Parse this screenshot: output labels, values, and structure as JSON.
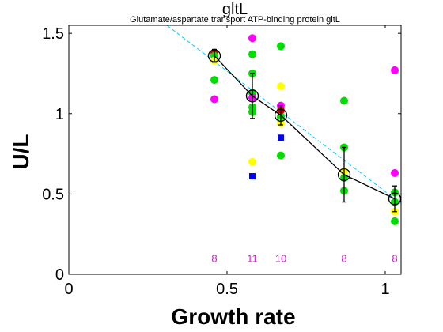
{
  "chart_data": {
    "type": "scatter",
    "title": "gltL",
    "subtitle": "Glutamate/aspartate transport ATP-binding protein gltL",
    "xlabel": "Growth rate",
    "ylabel": "U/L",
    "xlim": [
      0,
      1.05
    ],
    "ylim": [
      0,
      1.55
    ],
    "xticks": [
      0,
      0.5,
      1
    ],
    "xtick_labels": [
      "0",
      "0.5",
      "1"
    ],
    "yticks": [
      0,
      0.5,
      1,
      1.5
    ],
    "ytick_labels": [
      "0",
      "0.5",
      "1",
      "1.5"
    ],
    "grid": false,
    "colors": {
      "magenta": "#ff00ff",
      "green": "#00dd00",
      "yellow": "#ffff00",
      "blue": "#0000ff",
      "red": "#cc0000",
      "cyan": "#00ccff",
      "mean_line": "#000000",
      "count": "#cc22cc"
    },
    "mean_series": {
      "x": [
        0.46,
        0.58,
        0.67,
        0.87,
        1.03
      ],
      "y": [
        1.36,
        1.11,
        0.99,
        0.62,
        0.47
      ],
      "err": [
        0.04,
        0.14,
        0.06,
        0.17,
        0.08
      ]
    },
    "fit_line": {
      "x": [
        0.31,
        1.05
      ],
      "y": [
        1.55,
        0.44
      ]
    },
    "points": [
      {
        "x": 0.46,
        "y": 1.38,
        "color": "red",
        "shape": "circle"
      },
      {
        "x": 0.46,
        "y": 1.36,
        "color": "green",
        "shape": "circle"
      },
      {
        "x": 0.46,
        "y": 1.33,
        "color": "yellow",
        "shape": "circle"
      },
      {
        "x": 0.46,
        "y": 1.21,
        "color": "green",
        "shape": "circle"
      },
      {
        "x": 0.46,
        "y": 1.09,
        "color": "magenta",
        "shape": "circle"
      },
      {
        "x": 0.58,
        "y": 1.47,
        "color": "magenta",
        "shape": "circle"
      },
      {
        "x": 0.58,
        "y": 1.37,
        "color": "green",
        "shape": "circle"
      },
      {
        "x": 0.58,
        "y": 1.25,
        "color": "green",
        "shape": "circle"
      },
      {
        "x": 0.58,
        "y": 1.13,
        "color": "green",
        "shape": "circle"
      },
      {
        "x": 0.58,
        "y": 1.1,
        "color": "magenta",
        "shape": "circle"
      },
      {
        "x": 0.58,
        "y": 1.04,
        "color": "green",
        "shape": "circle"
      },
      {
        "x": 0.58,
        "y": 1.01,
        "color": "green",
        "shape": "circle"
      },
      {
        "x": 0.58,
        "y": 0.7,
        "color": "yellow",
        "shape": "circle"
      },
      {
        "x": 0.58,
        "y": 0.61,
        "color": "blue",
        "shape": "square"
      },
      {
        "x": 0.67,
        "y": 1.42,
        "color": "green",
        "shape": "circle"
      },
      {
        "x": 0.67,
        "y": 1.17,
        "color": "yellow",
        "shape": "circle"
      },
      {
        "x": 0.67,
        "y": 1.05,
        "color": "magenta",
        "shape": "circle"
      },
      {
        "x": 0.67,
        "y": 1.02,
        "color": "red",
        "shape": "circle"
      },
      {
        "x": 0.67,
        "y": 0.98,
        "color": "green",
        "shape": "circle"
      },
      {
        "x": 0.67,
        "y": 0.94,
        "color": "yellow",
        "shape": "circle"
      },
      {
        "x": 0.67,
        "y": 0.85,
        "color": "blue",
        "shape": "square"
      },
      {
        "x": 0.67,
        "y": 0.74,
        "color": "green",
        "shape": "circle"
      },
      {
        "x": 0.87,
        "y": 1.08,
        "color": "green",
        "shape": "circle"
      },
      {
        "x": 0.87,
        "y": 0.79,
        "color": "green",
        "shape": "circle"
      },
      {
        "x": 0.87,
        "y": 0.64,
        "color": "yellow",
        "shape": "circle"
      },
      {
        "x": 0.87,
        "y": 0.6,
        "color": "green",
        "shape": "circle"
      },
      {
        "x": 0.87,
        "y": 0.52,
        "color": "green",
        "shape": "circle"
      },
      {
        "x": 1.03,
        "y": 1.27,
        "color": "magenta",
        "shape": "circle"
      },
      {
        "x": 1.03,
        "y": 0.63,
        "color": "magenta",
        "shape": "circle"
      },
      {
        "x": 1.03,
        "y": 0.51,
        "color": "green",
        "shape": "circle"
      },
      {
        "x": 1.03,
        "y": 0.45,
        "color": "green",
        "shape": "circle"
      },
      {
        "x": 1.03,
        "y": 0.39,
        "color": "yellow",
        "shape": "circle"
      },
      {
        "x": 1.03,
        "y": 0.33,
        "color": "green",
        "shape": "circle"
      }
    ],
    "counts": [
      {
        "x": 0.46,
        "label": "8"
      },
      {
        "x": 0.58,
        "label": "11"
      },
      {
        "x": 0.67,
        "label": "10"
      },
      {
        "x": 0.87,
        "label": "8"
      },
      {
        "x": 1.03,
        "label": "8"
      }
    ],
    "counts_y": 0.1
  }
}
